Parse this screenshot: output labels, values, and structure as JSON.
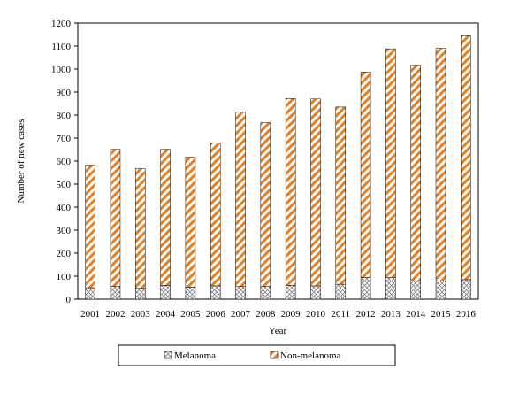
{
  "chart_data": {
    "type": "bar",
    "stacked": true,
    "xlabel": "Year",
    "ylabel": "Number of new cases",
    "ylim": [
      0,
      1200
    ],
    "yticks": [
      0,
      100,
      200,
      300,
      400,
      500,
      600,
      700,
      800,
      900,
      1000,
      1100,
      1200
    ],
    "grid": false,
    "legend_position": "bottom",
    "categories": [
      "2001",
      "2002",
      "2003",
      "2004",
      "2005",
      "2006",
      "2007",
      "2008",
      "2009",
      "2010",
      "2011",
      "2012",
      "2013",
      "2014",
      "2015",
      "2016"
    ],
    "series": [
      {
        "name": "Melanoma",
        "pattern": "crosshatch",
        "color": "#808080",
        "values": [
          50,
          55,
          47,
          60,
          52,
          58,
          55,
          55,
          60,
          58,
          65,
          95,
          95,
          80,
          80,
          85
        ]
      },
      {
        "name": "Non-melanoma",
        "pattern": "diagonal-stripes",
        "color": "#E67E22",
        "values": [
          532,
          596,
          520,
          591,
          565,
          620,
          758,
          712,
          812,
          812,
          770,
          892,
          993,
          935,
          1010,
          1060
        ]
      }
    ]
  }
}
